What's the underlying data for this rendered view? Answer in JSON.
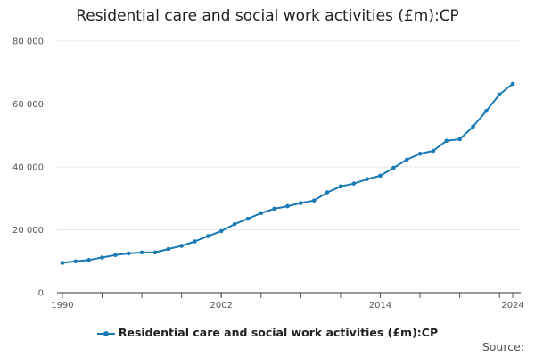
{
  "chart_data": {
    "type": "line",
    "title": "Residential care and social work activities (£m):CP",
    "xlabel": "",
    "ylabel": "",
    "ylim": [
      0,
      80000
    ],
    "y_ticks": [
      "0",
      "20 000",
      "40 000",
      "60 000",
      "80 000"
    ],
    "y_tick_values": [
      0,
      20000,
      40000,
      60000,
      80000
    ],
    "x_tick_labels": [
      "1990",
      "2002",
      "2014",
      "2024"
    ],
    "x_tick_values": [
      1990,
      2002,
      2014,
      2024
    ],
    "grid": true,
    "legend_position": "bottom",
    "color": "#1a7ab5",
    "x": [
      1990,
      1991,
      1992,
      1993,
      1994,
      1995,
      1996,
      1997,
      1998,
      1999,
      2000,
      2001,
      2002,
      2003,
      2004,
      2005,
      2006,
      2007,
      2008,
      2009,
      2010,
      2011,
      2012,
      2013,
      2014,
      2015,
      2016,
      2017,
      2018,
      2019,
      2020,
      2021,
      2022,
      2023,
      2024
    ],
    "series": [
      {
        "name": "Residential care and social work activities (£m):CP",
        "values": [
          9500,
          10000,
          10400,
          11200,
          12000,
          12500,
          12800,
          12800,
          13900,
          14900,
          16300,
          18000,
          19600,
          21800,
          23500,
          25300,
          26700,
          27500,
          28500,
          29300,
          31900,
          33800,
          34700,
          36100,
          37200,
          39700,
          42300,
          44200,
          45100,
          48300,
          48800,
          52800,
          57800,
          63000,
          66400
        ]
      }
    ]
  },
  "legend": {
    "label": "Residential care and social work activities (£m):CP"
  },
  "source": {
    "label": "Source:"
  }
}
